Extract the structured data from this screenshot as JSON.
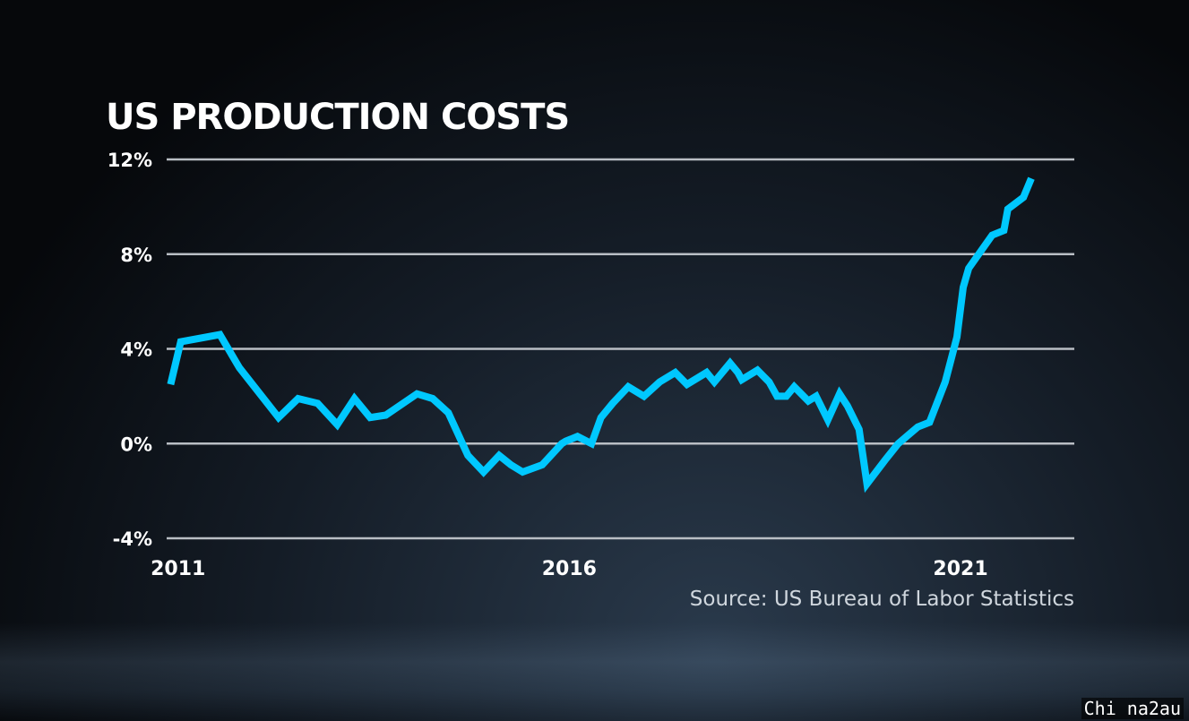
{
  "chart_data": {
    "type": "line",
    "title": "US PRODUCTION COSTS",
    "source": "Source: US Bureau of Labor Statistics",
    "xlabel": "",
    "ylabel": "",
    "ylim": [
      -4,
      12
    ],
    "xlim": [
      2010.9,
      2022.5
    ],
    "y_ticks": [
      {
        "value": 12,
        "label": "12%"
      },
      {
        "value": 8,
        "label": "8%"
      },
      {
        "value": 4,
        "label": "4%"
      },
      {
        "value": 0,
        "label": "0%"
      },
      {
        "value": -4,
        "label": "-4%"
      }
    ],
    "x_ticks": [
      {
        "value": 2011,
        "label": "2011"
      },
      {
        "value": 2016,
        "label": "2016"
      },
      {
        "value": 2021,
        "label": "2021"
      }
    ],
    "grid": true,
    "line_color": "#00c8ff",
    "series": [
      {
        "x": [
          2010.95,
          2011.08,
          2011.58,
          2011.83,
          2012.33,
          2012.58,
          2012.83,
          2013.08,
          2013.3,
          2013.5,
          2013.7,
          2014.1,
          2014.3,
          2014.5,
          2014.75,
          2014.95,
          2015.15,
          2015.3,
          2015.45,
          2015.7,
          2015.95,
          2016.0,
          2016.15,
          2016.33,
          2016.45,
          2016.6,
          2016.8,
          2017.0,
          2017.2,
          2017.4,
          2017.55,
          2017.8,
          2017.9,
          2018.1,
          2018.2,
          2018.25,
          2018.45,
          2018.6,
          2018.7,
          2018.82,
          2018.92,
          2019.1,
          2019.2,
          2019.35,
          2019.5,
          2019.6,
          2019.75,
          2019.85,
          2020.08,
          2020.25,
          2020.5,
          2020.65,
          2020.85,
          2021.0,
          2021.08,
          2021.15,
          2021.45,
          2021.6,
          2021.65,
          2021.85,
          2021.95
        ],
        "y": [
          2.5,
          4.3,
          4.6,
          3.2,
          1.1,
          1.9,
          1.7,
          0.8,
          1.9,
          1.1,
          1.2,
          2.1,
          1.9,
          1.3,
          -0.5,
          -1.2,
          -0.5,
          -0.9,
          -1.2,
          -0.9,
          0.0,
          0.1,
          0.3,
          0.0,
          1.1,
          1.7,
          2.4,
          2.0,
          2.6,
          3.0,
          2.5,
          3.0,
          2.6,
          3.4,
          3.0,
          2.7,
          3.1,
          2.6,
          2.0,
          2.0,
          2.4,
          1.8,
          2.0,
          1.0,
          2.1,
          1.6,
          0.6,
          -1.7,
          -0.7,
          0.0,
          0.7,
          0.9,
          2.6,
          4.5,
          6.6,
          7.4,
          8.8,
          9.0,
          9.9,
          10.4,
          11.2
        ]
      }
    ]
  },
  "watermark": "Chi na2au"
}
